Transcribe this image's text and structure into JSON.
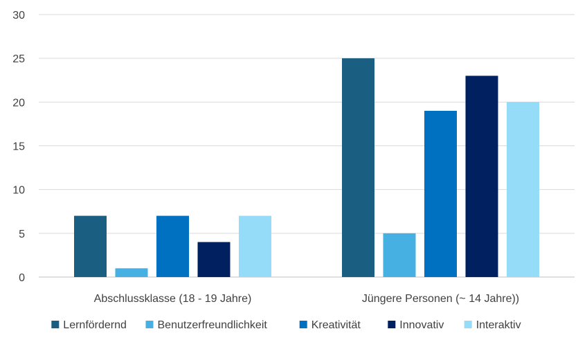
{
  "chart_data": {
    "type": "bar",
    "categories": [
      "Abschlussklasse (18 - 19 Jahre)",
      "Jüngere Personen (~ 14 Jahre))"
    ],
    "series": [
      {
        "name": "Lernfördernd",
        "values": [
          7,
          25
        ],
        "color": "#1a5f82"
      },
      {
        "name": "Benutzerfreundlichkeit",
        "values": [
          1,
          5
        ],
        "color": "#45b0e1"
      },
      {
        "name": "Kreativität",
        "values": [
          7,
          19
        ],
        "color": "#0070c0"
      },
      {
        "name": "Innovativ",
        "values": [
          4,
          23
        ],
        "color": "#002060"
      },
      {
        "name": "Interaktiv",
        "values": [
          7,
          20
        ],
        "color": "#94dcf8"
      }
    ],
    "y_ticks": [
      "0",
      "5",
      "10",
      "15",
      "20",
      "25",
      "30"
    ],
    "ylim": [
      0,
      30
    ],
    "grid": true,
    "legend_position": "bottom",
    "title": "",
    "xlabel": "",
    "ylabel": ""
  }
}
